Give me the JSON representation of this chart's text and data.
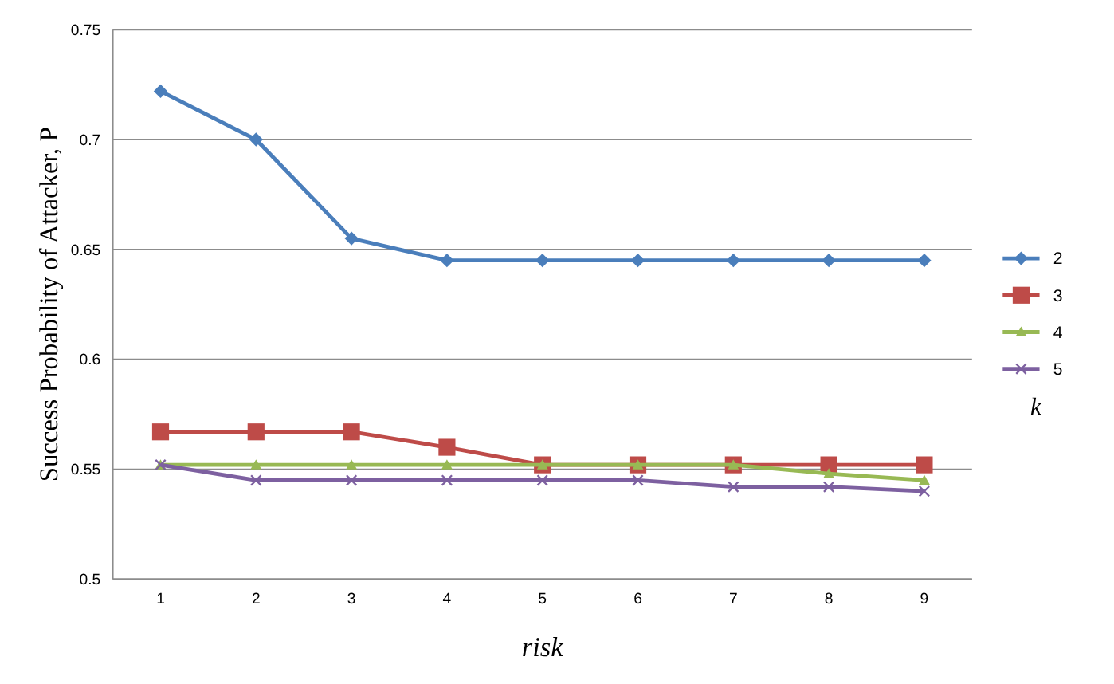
{
  "chart_data": {
    "type": "line",
    "xlabel": "risk",
    "ylabel": "Success Probability of Attacker, P",
    "legend_title": "k",
    "categories": [
      "1",
      "2",
      "3",
      "4",
      "5",
      "6",
      "7",
      "8",
      "9"
    ],
    "series": [
      {
        "name": "2",
        "color": "#4a7ebb",
        "marker": "diamond",
        "values": [
          0.722,
          0.7,
          0.655,
          0.645,
          0.645,
          0.645,
          0.645,
          0.645,
          0.645
        ]
      },
      {
        "name": "3",
        "color": "#be4b48",
        "marker": "square",
        "values": [
          0.567,
          0.567,
          0.567,
          0.56,
          0.552,
          0.552,
          0.552,
          0.552,
          0.552
        ]
      },
      {
        "name": "4",
        "color": "#98b954",
        "marker": "triangle",
        "values": [
          0.552,
          0.552,
          0.552,
          0.552,
          0.552,
          0.552,
          0.552,
          0.548,
          0.545
        ]
      },
      {
        "name": "5",
        "color": "#7d60a0",
        "marker": "cross",
        "values": [
          0.552,
          0.545,
          0.545,
          0.545,
          0.545,
          0.545,
          0.542,
          0.542,
          0.54
        ]
      }
    ],
    "ylim": [
      0.5,
      0.75
    ],
    "yticks": [
      0.5,
      0.55,
      0.6,
      0.65,
      0.7,
      0.75
    ],
    "grid": "y",
    "legend": "right",
    "line_style": "solid"
  }
}
